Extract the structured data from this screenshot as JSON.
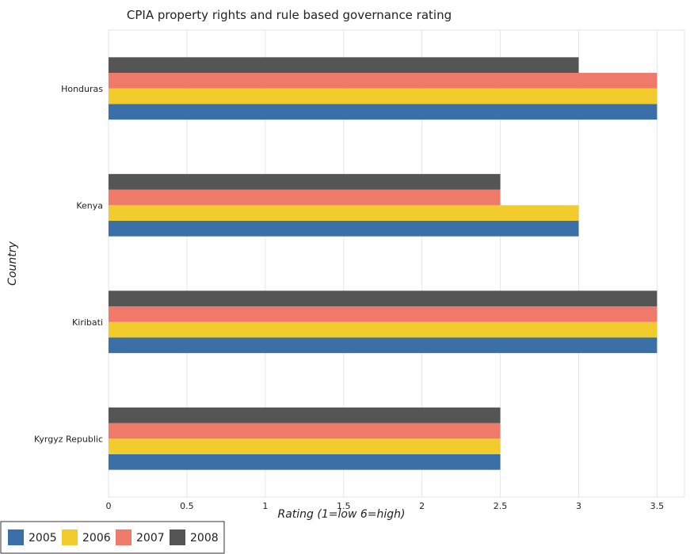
{
  "chart_data": {
    "type": "bar",
    "orientation": "horizontal",
    "title": "CPIA property rights and rule based governance rating",
    "xlabel": "Rating (1=low 6=high)",
    "ylabel": "Country",
    "xlim": [
      0,
      3.675
    ],
    "xticks": [
      0,
      0.5,
      1,
      1.5,
      2,
      2.5,
      3,
      3.5
    ],
    "xtick_labels": [
      "0",
      "0.5",
      "1",
      "1.5",
      "2",
      "2.5",
      "3",
      "3.5"
    ],
    "grid": true,
    "legend_position": "bottom-left",
    "categories": [
      "Honduras",
      "Kenya",
      "Kiribati",
      "Kyrgyz Republic"
    ],
    "series": [
      {
        "name": "2005",
        "color": "#3a6fa8",
        "values": [
          3.5,
          3.0,
          3.5,
          2.5
        ]
      },
      {
        "name": "2006",
        "color": "#f2cc2c",
        "values": [
          3.5,
          3.0,
          3.5,
          2.5
        ]
      },
      {
        "name": "2007",
        "color": "#f07a6a",
        "values": [
          3.5,
          2.5,
          3.5,
          2.5
        ]
      },
      {
        "name": "2008",
        "color": "#555555",
        "values": [
          3.0,
          2.5,
          3.5,
          2.5
        ]
      }
    ]
  }
}
